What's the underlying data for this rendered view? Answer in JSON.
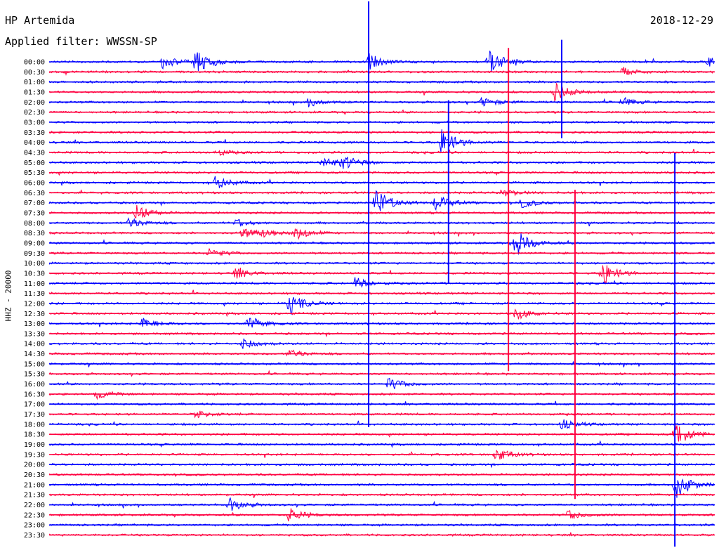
{
  "header": {
    "station": "HP Artemida",
    "filter": "Applied filter: WWSSN-SP",
    "date": "2018-12-29"
  },
  "chart_data": {
    "type": "line",
    "ylabel": "HHZ - 20000",
    "row_labels": [
      "00:00",
      "00:30",
      "01:00",
      "01:30",
      "02:00",
      "02:30",
      "03:00",
      "03:30",
      "04:00",
      "04:30",
      "05:00",
      "05:30",
      "06:00",
      "06:30",
      "07:00",
      "07:30",
      "08:00",
      "08:30",
      "09:00",
      "09:30",
      "10:00",
      "10:30",
      "11:00",
      "11:30",
      "12:00",
      "12:30",
      "13:00",
      "13:30",
      "14:00",
      "14:30",
      "15:00",
      "15:30",
      "16:00",
      "16:30",
      "17:00",
      "17:30",
      "18:00",
      "18:30",
      "19:00",
      "19:30",
      "20:00",
      "20:30",
      "21:00",
      "21:30",
      "22:00",
      "22:30",
      "23:00",
      "23:30"
    ],
    "series_colors": [
      "#0000ff",
      "#ff0040"
    ],
    "grid": false,
    "x_range_minutes": [
      0,
      30
    ],
    "events": [
      {
        "row": 0,
        "t": 0.17,
        "amp": 1.2
      },
      {
        "row": 0,
        "t": 0.22,
        "amp": 2.8
      },
      {
        "row": 0,
        "t": 0.48,
        "amp": 1.5
      },
      {
        "row": 0,
        "t": 0.66,
        "amp": 2.4
      },
      {
        "row": 0,
        "t": 0.99,
        "amp": 0.9
      },
      {
        "row": 1,
        "t": 0.86,
        "amp": 0.9
      },
      {
        "row": 3,
        "t": 0.76,
        "amp": 1.6
      },
      {
        "row": 4,
        "t": 0.39,
        "amp": 0.8
      },
      {
        "row": 4,
        "t": 0.65,
        "amp": 1.0
      },
      {
        "row": 4,
        "t": 0.86,
        "amp": 0.8
      },
      {
        "row": 8,
        "t": 0.59,
        "amp": 2.6
      },
      {
        "row": 9,
        "t": 0.25,
        "amp": 0.6
      },
      {
        "row": 10,
        "t": 0.41,
        "amp": 1.0
      },
      {
        "row": 10,
        "t": 0.44,
        "amp": 1.3
      },
      {
        "row": 12,
        "t": 0.25,
        "amp": 1.2
      },
      {
        "row": 13,
        "t": 0.68,
        "amp": 0.9
      },
      {
        "row": 14,
        "t": 0.49,
        "amp": 2.8
      },
      {
        "row": 14,
        "t": 0.58,
        "amp": 1.5
      },
      {
        "row": 14,
        "t": 0.71,
        "amp": 0.9
      },
      {
        "row": 15,
        "t": 0.13,
        "amp": 1.6
      },
      {
        "row": 16,
        "t": 0.12,
        "amp": 1.0
      },
      {
        "row": 16,
        "t": 0.28,
        "amp": 0.7
      },
      {
        "row": 17,
        "t": 0.29,
        "amp": 0.9
      },
      {
        "row": 17,
        "t": 0.32,
        "amp": 0.8
      },
      {
        "row": 17,
        "t": 0.37,
        "amp": 1.3
      },
      {
        "row": 18,
        "t": 0.7,
        "amp": 2.6
      },
      {
        "row": 19,
        "t": 0.24,
        "amp": 0.9
      },
      {
        "row": 21,
        "t": 0.28,
        "amp": 1.0
      },
      {
        "row": 21,
        "t": 0.83,
        "amp": 2.3
      },
      {
        "row": 22,
        "t": 0.46,
        "amp": 1.1
      },
      {
        "row": 24,
        "t": 0.36,
        "amp": 2.3
      },
      {
        "row": 25,
        "t": 0.7,
        "amp": 1.2
      },
      {
        "row": 26,
        "t": 0.3,
        "amp": 1.4
      },
      {
        "row": 26,
        "t": 0.14,
        "amp": 1.0
      },
      {
        "row": 28,
        "t": 0.29,
        "amp": 1.0
      },
      {
        "row": 29,
        "t": 0.36,
        "amp": 0.8
      },
      {
        "row": 32,
        "t": 0.51,
        "amp": 1.2
      },
      {
        "row": 33,
        "t": 0.07,
        "amp": 0.8
      },
      {
        "row": 35,
        "t": 0.22,
        "amp": 0.7
      },
      {
        "row": 36,
        "t": 0.77,
        "amp": 0.9
      },
      {
        "row": 37,
        "t": 0.94,
        "amp": 2.6
      },
      {
        "row": 39,
        "t": 0.67,
        "amp": 1.3
      },
      {
        "row": 42,
        "t": 0.94,
        "amp": 2.8
      },
      {
        "row": 44,
        "t": 0.27,
        "amp": 1.3
      },
      {
        "row": 45,
        "t": 0.36,
        "amp": 1.3
      },
      {
        "row": 45,
        "t": 0.78,
        "amp": 0.9
      }
    ],
    "spikes": [
      {
        "row": 0,
        "t": 0.48,
        "up": 88,
        "down": 520
      },
      {
        "row": 8,
        "t": 0.6,
        "up": 60,
        "down": 200
      },
      {
        "row": 7,
        "t": 0.69,
        "up": 120,
        "down": 340
      },
      {
        "row": 2,
        "t": 0.77,
        "up": 60,
        "down": 80
      },
      {
        "row": 19,
        "t": 0.79,
        "up": 90,
        "down": 350
      },
      {
        "row": 30,
        "t": 0.94,
        "up": 300,
        "down": 480
      }
    ]
  }
}
